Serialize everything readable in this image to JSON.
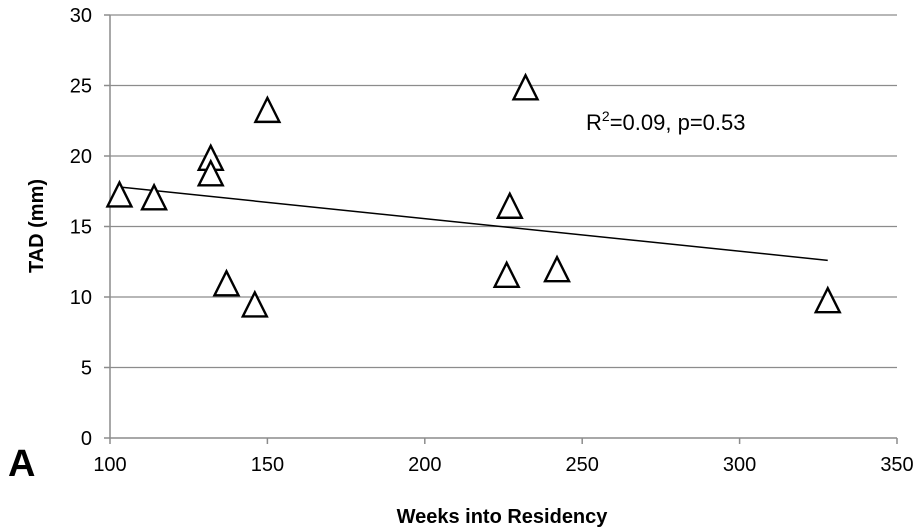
{
  "chart_data": {
    "type": "scatter",
    "panel_label": "A",
    "xlabel": "Weeks into Residency",
    "ylabel": "TAD (mm)",
    "xlim": [
      100,
      350
    ],
    "ylim": [
      0,
      30
    ],
    "xticks": [
      100,
      150,
      200,
      250,
      300,
      350
    ],
    "yticks": [
      0,
      5,
      10,
      15,
      20,
      25,
      30
    ],
    "grid": "horizontal",
    "marker": "open-triangle",
    "annotation": {
      "r_label": "R",
      "r_sup": "2",
      "rest": "=0.09, p=0.53"
    },
    "trendline": {
      "x": [
        103,
        328
      ],
      "y": [
        17.8,
        12.6
      ]
    },
    "points": [
      {
        "x": 103,
        "y": 17.2
      },
      {
        "x": 114,
        "y": 17.0
      },
      {
        "x": 132,
        "y": 19.8
      },
      {
        "x": 132,
        "y": 18.7
      },
      {
        "x": 137,
        "y": 10.9
      },
      {
        "x": 146,
        "y": 9.4
      },
      {
        "x": 150,
        "y": 23.2
      },
      {
        "x": 226,
        "y": 11.5
      },
      {
        "x": 227,
        "y": 16.4
      },
      {
        "x": 232,
        "y": 24.8
      },
      {
        "x": 242,
        "y": 11.9
      },
      {
        "x": 328,
        "y": 9.7
      }
    ]
  }
}
